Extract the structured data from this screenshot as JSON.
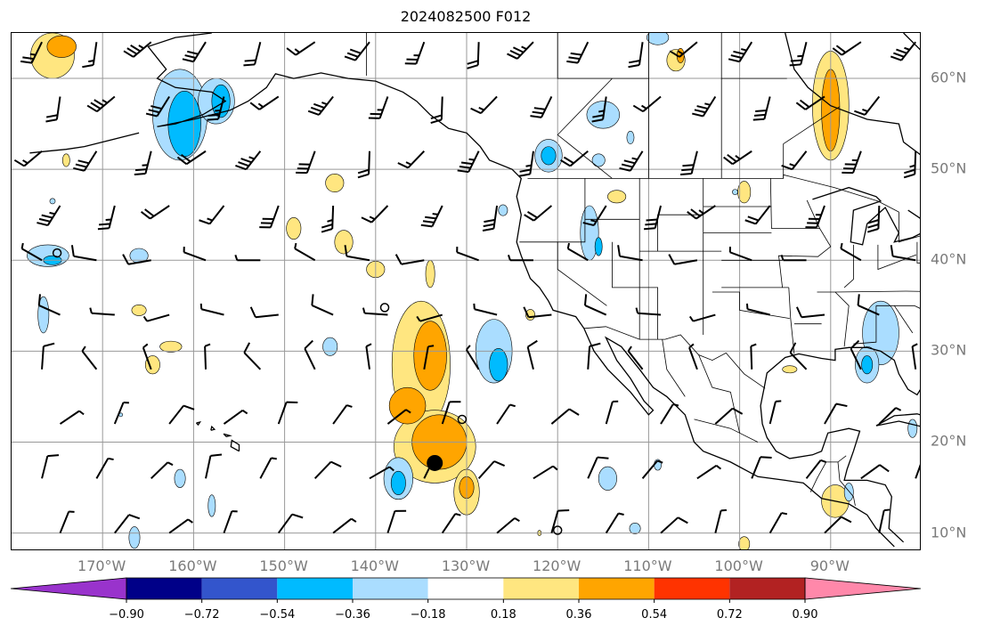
{
  "title": "2024082500 F012",
  "map": {
    "lon_range": [
      -180,
      -80
    ],
    "lat_range": [
      8,
      65
    ],
    "lon_ticks": [
      {
        "lon": -170,
        "label": "170°W"
      },
      {
        "lon": -160,
        "label": "160°W"
      },
      {
        "lon": -150,
        "label": "150°W"
      },
      {
        "lon": -140,
        "label": "140°W"
      },
      {
        "lon": -130,
        "label": "130°W"
      },
      {
        "lon": -120,
        "label": "120°W"
      },
      {
        "lon": -110,
        "label": "110°W"
      },
      {
        "lon": -100,
        "label": "100°W"
      },
      {
        "lon": -90,
        "label": "90°W"
      }
    ],
    "lat_ticks": [
      {
        "lat": 60,
        "label": "60°N"
      },
      {
        "lat": 50,
        "label": "50°N"
      },
      {
        "lat": 40,
        "label": "40°N"
      },
      {
        "lat": 30,
        "label": "30°N"
      },
      {
        "lat": 20,
        "label": "20°N"
      },
      {
        "lat": 10,
        "label": "10°N"
      }
    ],
    "gridlines": true,
    "marker": {
      "lon": -133.5,
      "lat": 17.7,
      "shape": "filled-circle"
    }
  },
  "colorbar": {
    "colors": [
      "#9933cc",
      "#000088",
      "#3355cc",
      "#00bbff",
      "#aaddff",
      "#ffffff",
      "#ffe680",
      "#ffa500",
      "#ff3300",
      "#b22222",
      "#ff88aa"
    ],
    "tick_labels": [
      "−0.90",
      "−0.72",
      "−0.54",
      "−0.36",
      "−0.18",
      "0.18",
      "0.36",
      "0.54",
      "0.72",
      "0.90"
    ],
    "extend": "both"
  }
}
